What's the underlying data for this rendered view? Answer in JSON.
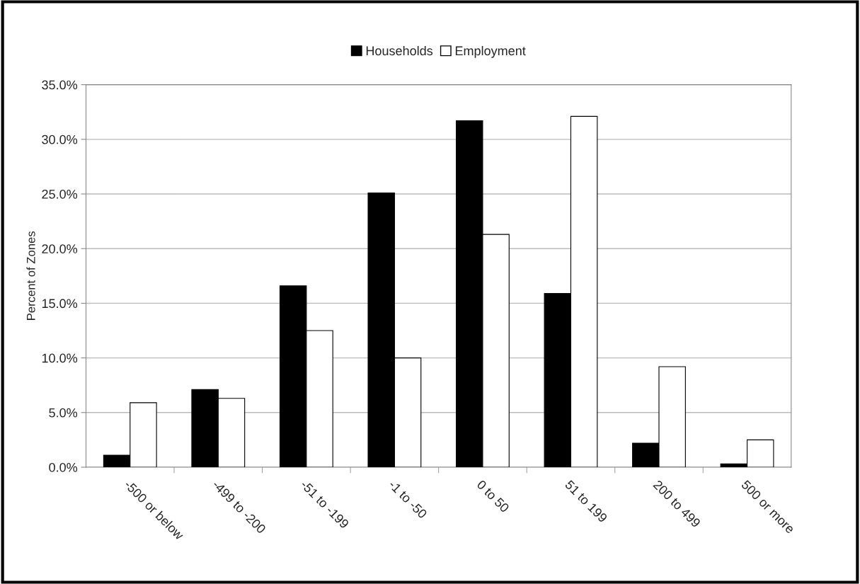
{
  "chart_data": {
    "type": "bar",
    "ylabel": "Percent of Zones",
    "categories": [
      "-500 or below",
      "-499 to -200",
      "-51 to -199",
      "-1 to -50",
      "0 to 50",
      "51 to 199",
      "200 to 499",
      "500 or more"
    ],
    "series": [
      {
        "name": "Households",
        "color": "#000000",
        "values": [
          1.1,
          7.1,
          16.6,
          25.1,
          31.7,
          15.9,
          2.2,
          0.3
        ]
      },
      {
        "name": "Employment",
        "color": "#ffffff",
        "values": [
          5.9,
          6.3,
          12.5,
          10.0,
          21.3,
          32.1,
          9.2,
          2.5
        ]
      }
    ],
    "ylim": [
      0,
      35
    ],
    "yticks": [
      {
        "value": 0,
        "label": "0.0%"
      },
      {
        "value": 5,
        "label": "5.0%"
      },
      {
        "value": 10,
        "label": "10.0%"
      },
      {
        "value": 15,
        "label": "15.0%"
      },
      {
        "value": 20,
        "label": "20.0%"
      },
      {
        "value": 25,
        "label": "25.0%"
      },
      {
        "value": 30,
        "label": "30.0%"
      },
      {
        "value": 35,
        "label": "35.0%"
      }
    ],
    "grid": "y",
    "legend": "top"
  }
}
